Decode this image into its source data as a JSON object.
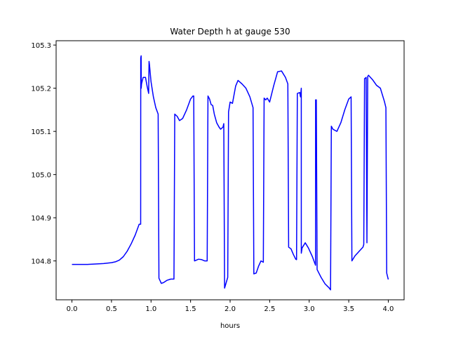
{
  "chart_data": {
    "type": "line",
    "title": "Water Depth h at gauge 530",
    "xlabel": "hours",
    "ylabel": "",
    "xlim": [
      -0.2,
      4.2
    ],
    "ylim": [
      104.71,
      105.31
    ],
    "xticks": [
      0.0,
      0.5,
      1.0,
      1.5,
      2.0,
      2.5,
      3.0,
      3.5,
      4.0
    ],
    "xtick_labels": [
      "0.0",
      "0.5",
      "1.0",
      "1.5",
      "2.0",
      "2.5",
      "3.0",
      "3.5",
      "4.0"
    ],
    "yticks": [
      104.8,
      104.9,
      105.0,
      105.1,
      105.2,
      105.3
    ],
    "ytick_labels": [
      "104.8",
      "104.9",
      "105.0",
      "105.1",
      "105.2",
      "105.3"
    ],
    "grid": false,
    "series": [
      {
        "color": "#0000ff",
        "x": [
          0.0,
          0.1,
          0.2,
          0.3,
          0.4,
          0.5,
          0.55,
          0.6,
          0.65,
          0.7,
          0.75,
          0.8,
          0.85,
          0.869,
          0.87,
          0.875,
          0.876,
          0.88,
          0.9,
          0.93,
          0.95,
          0.97,
          0.975,
          0.98,
          1.0,
          1.03,
          1.06,
          1.09,
          1.1,
          1.13,
          1.16,
          1.2,
          1.25,
          1.29,
          1.3,
          1.33,
          1.36,
          1.4,
          1.45,
          1.5,
          1.53,
          1.54,
          1.55,
          1.6,
          1.64,
          1.68,
          1.71,
          1.72,
          1.74,
          1.76,
          1.78,
          1.8,
          1.83,
          1.86,
          1.88,
          1.91,
          1.92,
          1.93,
          1.97,
          1.98,
          2.0,
          2.03,
          2.07,
          2.1,
          2.15,
          2.2,
          2.25,
          2.29,
          2.3,
          2.33,
          2.36,
          2.39,
          2.42,
          2.43,
          2.45,
          2.47,
          2.5,
          2.55,
          2.6,
          2.65,
          2.7,
          2.73,
          2.74,
          2.77,
          2.8,
          2.83,
          2.84,
          2.85,
          2.88,
          2.89,
          2.9,
          2.9001,
          2.91,
          2.95,
          2.99,
          3.04,
          3.08,
          3.081,
          3.09,
          3.1,
          3.15,
          3.2,
          3.25,
          3.27,
          3.28,
          3.3,
          3.35,
          3.4,
          3.45,
          3.5,
          3.53,
          3.54,
          3.58,
          3.63,
          3.68,
          3.69,
          3.7,
          3.72,
          3.73,
          3.74,
          3.75,
          3.8,
          3.85,
          3.9,
          3.95,
          3.97,
          3.98,
          4.0
        ],
        "y": [
          104.792,
          104.792,
          104.792,
          104.793,
          104.794,
          104.796,
          104.798,
          104.802,
          104.81,
          104.823,
          104.84,
          104.86,
          104.885,
          104.885,
          105.27,
          105.275,
          105.2,
          105.21,
          105.225,
          105.225,
          105.205,
          105.188,
          105.262,
          105.255,
          105.215,
          105.18,
          105.155,
          105.14,
          104.76,
          104.748,
          104.75,
          104.755,
          104.758,
          104.758,
          105.14,
          105.135,
          105.125,
          105.13,
          105.15,
          105.175,
          105.182,
          105.182,
          104.8,
          104.804,
          104.803,
          104.8,
          104.8,
          105.182,
          105.175,
          105.162,
          105.16,
          105.14,
          105.12,
          105.11,
          105.105,
          105.11,
          105.118,
          104.737,
          104.762,
          105.145,
          105.168,
          105.165,
          105.205,
          105.218,
          105.21,
          105.2,
          105.18,
          105.155,
          104.77,
          104.772,
          104.788,
          104.8,
          104.797,
          105.177,
          105.173,
          105.177,
          105.168,
          105.205,
          105.238,
          105.24,
          105.225,
          105.21,
          104.832,
          104.828,
          104.815,
          104.804,
          104.803,
          105.188,
          105.19,
          105.18,
          105.2,
          104.818,
          104.83,
          104.842,
          104.83,
          104.81,
          104.79,
          105.173,
          105.173,
          104.78,
          104.762,
          104.747,
          104.738,
          104.733,
          105.112,
          105.105,
          105.1,
          105.12,
          105.15,
          105.175,
          105.18,
          104.8,
          104.812,
          104.822,
          104.832,
          104.838,
          105.222,
          105.225,
          104.842,
          105.227,
          105.23,
          105.22,
          105.207,
          105.2,
          105.17,
          105.155,
          104.772,
          104.757
        ]
      }
    ]
  }
}
